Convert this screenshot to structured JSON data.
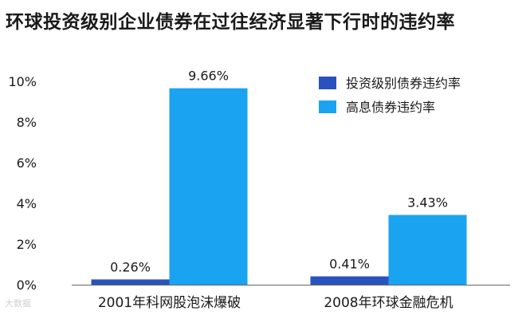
{
  "title": "环球投资级别企业债券在过往经济显著下行时的违约率",
  "watermark": "大数据",
  "chart_data": {
    "type": "bar",
    "title": "环球投资级别企业债券在过往经济显著下行时的违约率",
    "categories": [
      "2001年科网股泡沫爆破",
      "2008年环球金融危机"
    ],
    "series": [
      {
        "name": "投资级别债券违约率",
        "values": [
          0.26,
          0.41
        ],
        "labels": [
          "0.26%",
          "0.41%"
        ],
        "color": "#2a52be"
      },
      {
        "name": "高息债券违约率",
        "values": [
          9.66,
          3.43
        ],
        "labels": [
          "9.66%",
          "3.43%"
        ],
        "color": "#1aa3f0"
      }
    ],
    "yticks": [
      "0%",
      "2%",
      "4%",
      "6%",
      "8%",
      "10%"
    ],
    "ylim": [
      0,
      10
    ],
    "xlabel": "",
    "ylabel": "",
    "grid": false,
    "legend_position": "top-right"
  }
}
